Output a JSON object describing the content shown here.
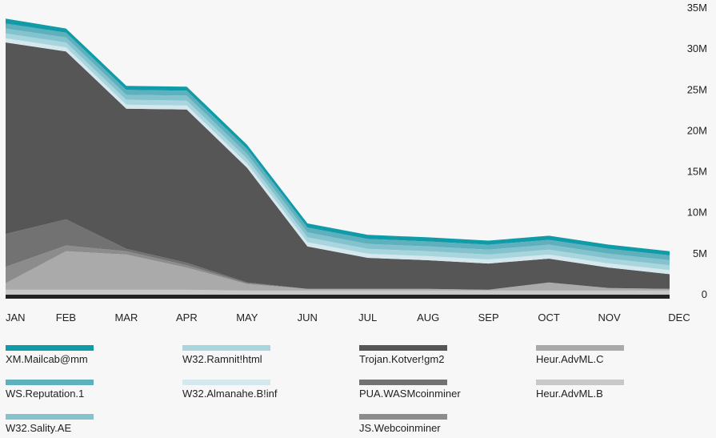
{
  "chart_data": {
    "type": "area",
    "stacked": true,
    "categories": [
      "JAN",
      "FEB",
      "MAR",
      "APR",
      "MAY",
      "JUN",
      "JUL",
      "AUG",
      "SEP",
      "OCT",
      "NOV",
      "DEC"
    ],
    "y_ticks": [
      "0",
      "5M",
      "10M",
      "15M",
      "20M",
      "25M",
      "30M",
      "35M"
    ],
    "ylim": [
      0,
      35000000
    ],
    "y_axis_position": "right",
    "grid": false,
    "legend_position": "bottom",
    "series": [
      {
        "name": "Heur.AdvML.B",
        "color": "#c8c8c8",
        "values": [
          600000,
          600000,
          600000,
          600000,
          500000,
          500000,
          500000,
          500000,
          500000,
          500000,
          500000,
          500000
        ]
      },
      {
        "name": "Heur.AdvML.C",
        "color": "#aaaaaa",
        "values": [
          800000,
          4700000,
          4300000,
          2700000,
          800000,
          200000,
          200000,
          200000,
          100000,
          1000000,
          300000,
          200000
        ]
      },
      {
        "name": "JS.Webcoinminer",
        "color": "#8c8c8c",
        "values": [
          2000000,
          700000,
          400000,
          300000,
          100000,
          0,
          0,
          0,
          0,
          0,
          0,
          0
        ]
      },
      {
        "name": "PUA.WASMcoinminer",
        "color": "#727272",
        "values": [
          4000000,
          3200000,
          300000,
          300000,
          100000,
          0,
          0,
          0,
          0,
          0,
          0,
          0
        ]
      },
      {
        "name": "Trojan.Kotver!gm2",
        "color": "#565656",
        "values": [
          23400000,
          20500000,
          17100000,
          18700000,
          14000000,
          5200000,
          3800000,
          3500000,
          3200000,
          2900000,
          2500000,
          1800000
        ]
      },
      {
        "name": "W32.Almanahe.B!inf",
        "color": "#d4e8ee",
        "values": [
          500000,
          500000,
          500000,
          500000,
          500000,
          500000,
          500000,
          500000,
          500000,
          500000,
          500000,
          500000
        ]
      },
      {
        "name": "W32.Ramnit!html",
        "color": "#a9d5df",
        "values": [
          600000,
          600000,
          600000,
          600000,
          600000,
          600000,
          600000,
          600000,
          600000,
          600000,
          600000,
          600000
        ]
      },
      {
        "name": "W32.Sality.AE",
        "color": "#84c2cd",
        "values": [
          600000,
          600000,
          600000,
          600000,
          600000,
          600000,
          600000,
          600000,
          600000,
          600000,
          600000,
          600000
        ]
      },
      {
        "name": "WS.Reputation.1",
        "color": "#5eb0bd",
        "values": [
          600000,
          600000,
          600000,
          600000,
          600000,
          600000,
          600000,
          600000,
          600000,
          600000,
          600000,
          600000
        ]
      },
      {
        "name": "XM.Mailcab@mm",
        "color": "#0f9ba8",
        "values": [
          600000,
          500000,
          500000,
          500000,
          500000,
          500000,
          500000,
          500000,
          500000,
          500000,
          500000,
          500000
        ]
      }
    ]
  },
  "legend": [
    {
      "label": "XM.Mailcab@mm",
      "color": "#0f9ba8"
    },
    {
      "label": "WS.Reputation.1",
      "color": "#5eb0bd"
    },
    {
      "label": "W32.Sality.AE",
      "color": "#84c2cd"
    },
    {
      "label": "W32.Ramnit!html",
      "color": "#a9d5df"
    },
    {
      "label": "W32.Almanahe.B!inf",
      "color": "#d4e8ee"
    },
    {
      "label": "Trojan.Kotver!gm2",
      "color": "#565656"
    },
    {
      "label": "PUA.WASMcoinminer",
      "color": "#727272"
    },
    {
      "label": "JS.Webcoinminer",
      "color": "#8c8c8c"
    },
    {
      "label": "Heur.AdvML.C",
      "color": "#aaaaaa"
    },
    {
      "label": "Heur.AdvML.B",
      "color": "#c8c8c8"
    }
  ]
}
